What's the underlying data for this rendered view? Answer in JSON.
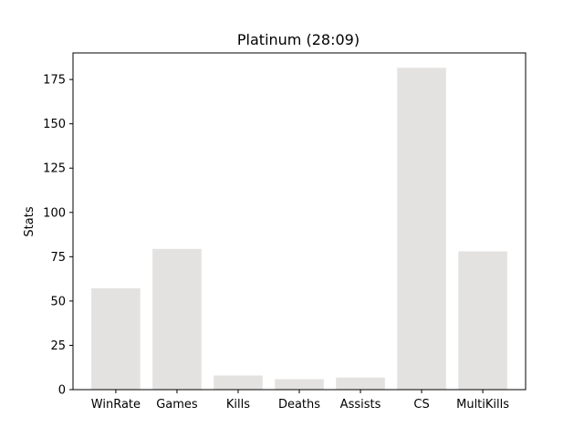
{
  "chart_data": {
    "type": "bar",
    "title": "Platinum (28:09)",
    "xlabel": "",
    "ylabel": "Stats",
    "categories": [
      "WinRate",
      "Games",
      "Kills",
      "Deaths",
      "Assists",
      "CS",
      "MultiKills"
    ],
    "values": [
      57.2,
      79.4,
      8.0,
      5.9,
      6.8,
      181.6,
      78.0
    ],
    "ylim": [
      0,
      190
    ],
    "yticks": [
      0,
      25,
      50,
      75,
      100,
      125,
      150,
      175
    ],
    "grid": false,
    "bar_color": "#e3e2e1"
  }
}
